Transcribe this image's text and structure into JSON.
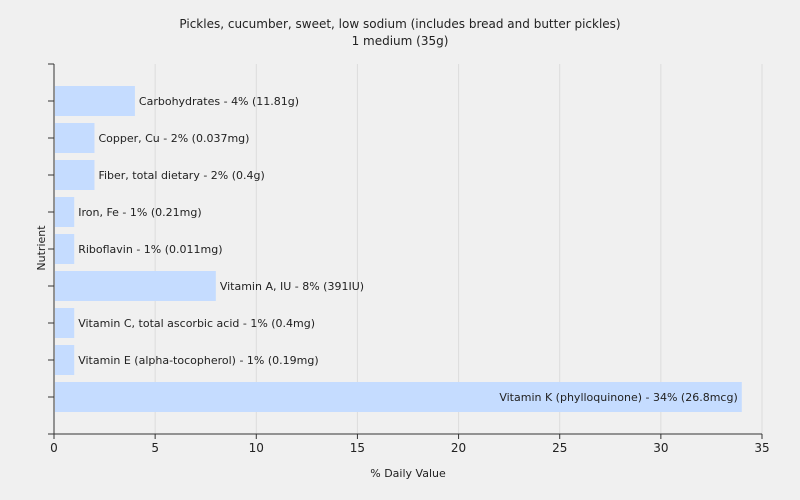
{
  "chart_data": {
    "type": "bar",
    "orientation": "horizontal",
    "title": "Pickles, cucumber, sweet, low sodium (includes bread and butter pickles)",
    "subtitle": "1 medium (35g)",
    "xlabel": "% Daily Value",
    "ylabel": "Nutrient",
    "xlim": [
      0,
      35
    ],
    "xticks": [
      "0",
      "5",
      "10",
      "15",
      "20",
      "25",
      "30",
      "35"
    ],
    "grid": "vertical",
    "bar_color": "#c5dcff",
    "categories": [
      "Carbohydrates",
      "Copper, Cu",
      "Fiber, total dietary",
      "Iron, Fe",
      "Riboflavin",
      "Vitamin A, IU",
      "Vitamin C, total ascorbic acid",
      "Vitamin E (alpha-tocopherol)",
      "Vitamin K (phylloquinone)"
    ],
    "values": [
      4,
      2,
      2,
      1,
      1,
      8,
      1,
      1,
      34
    ],
    "labels": [
      "Carbohydrates - 4% (11.81g)",
      "Copper, Cu - 2% (0.037mg)",
      "Fiber, total dietary - 2% (0.4g)",
      "Iron, Fe - 1% (0.21mg)",
      "Riboflavin - 1% (0.011mg)",
      "Vitamin A, IU - 8% (391IU)",
      "Vitamin C, total ascorbic acid - 1% (0.4mg)",
      "Vitamin E (alpha-tocopherol) - 1% (0.19mg)",
      "Vitamin K (phylloquinone) - 34% (26.8mcg)"
    ]
  }
}
